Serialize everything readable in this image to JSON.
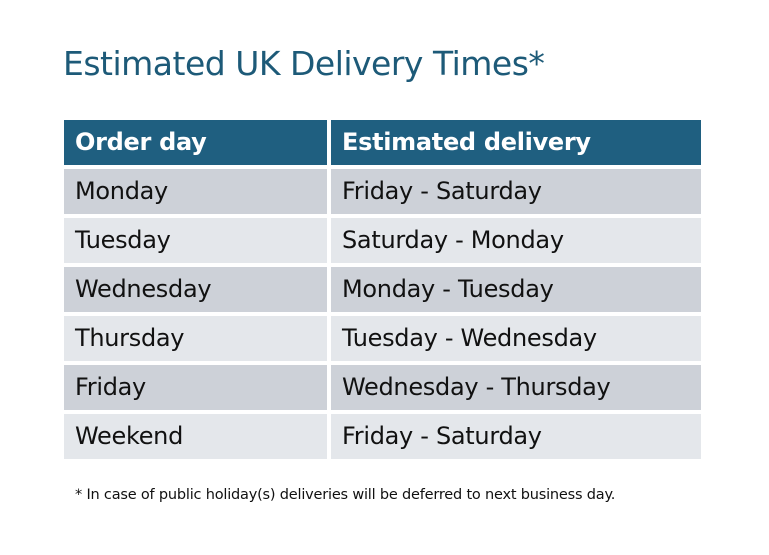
{
  "title": "Estimated UK Delivery Times*",
  "table": {
    "headers": [
      "Order day",
      "Estimated delivery"
    ],
    "rows": [
      [
        "Monday",
        "Friday - Saturday"
      ],
      [
        "Tuesday",
        "Saturday - Monday"
      ],
      [
        "Wednesday",
        "Monday - Tuesday"
      ],
      [
        "Thursday",
        "Tuesday - Wednesday"
      ],
      [
        "Friday",
        "Wednesday - Thursday"
      ],
      [
        "Weekend",
        "Friday - Saturday"
      ]
    ]
  },
  "footnote": "* In case of public holiday(s) deliveries will be deferred to next business day.",
  "colors": {
    "header": "#1f5f80",
    "title": "#1d5a78",
    "row_dark": "#cdd1d8",
    "row_light": "#e4e7eb"
  }
}
